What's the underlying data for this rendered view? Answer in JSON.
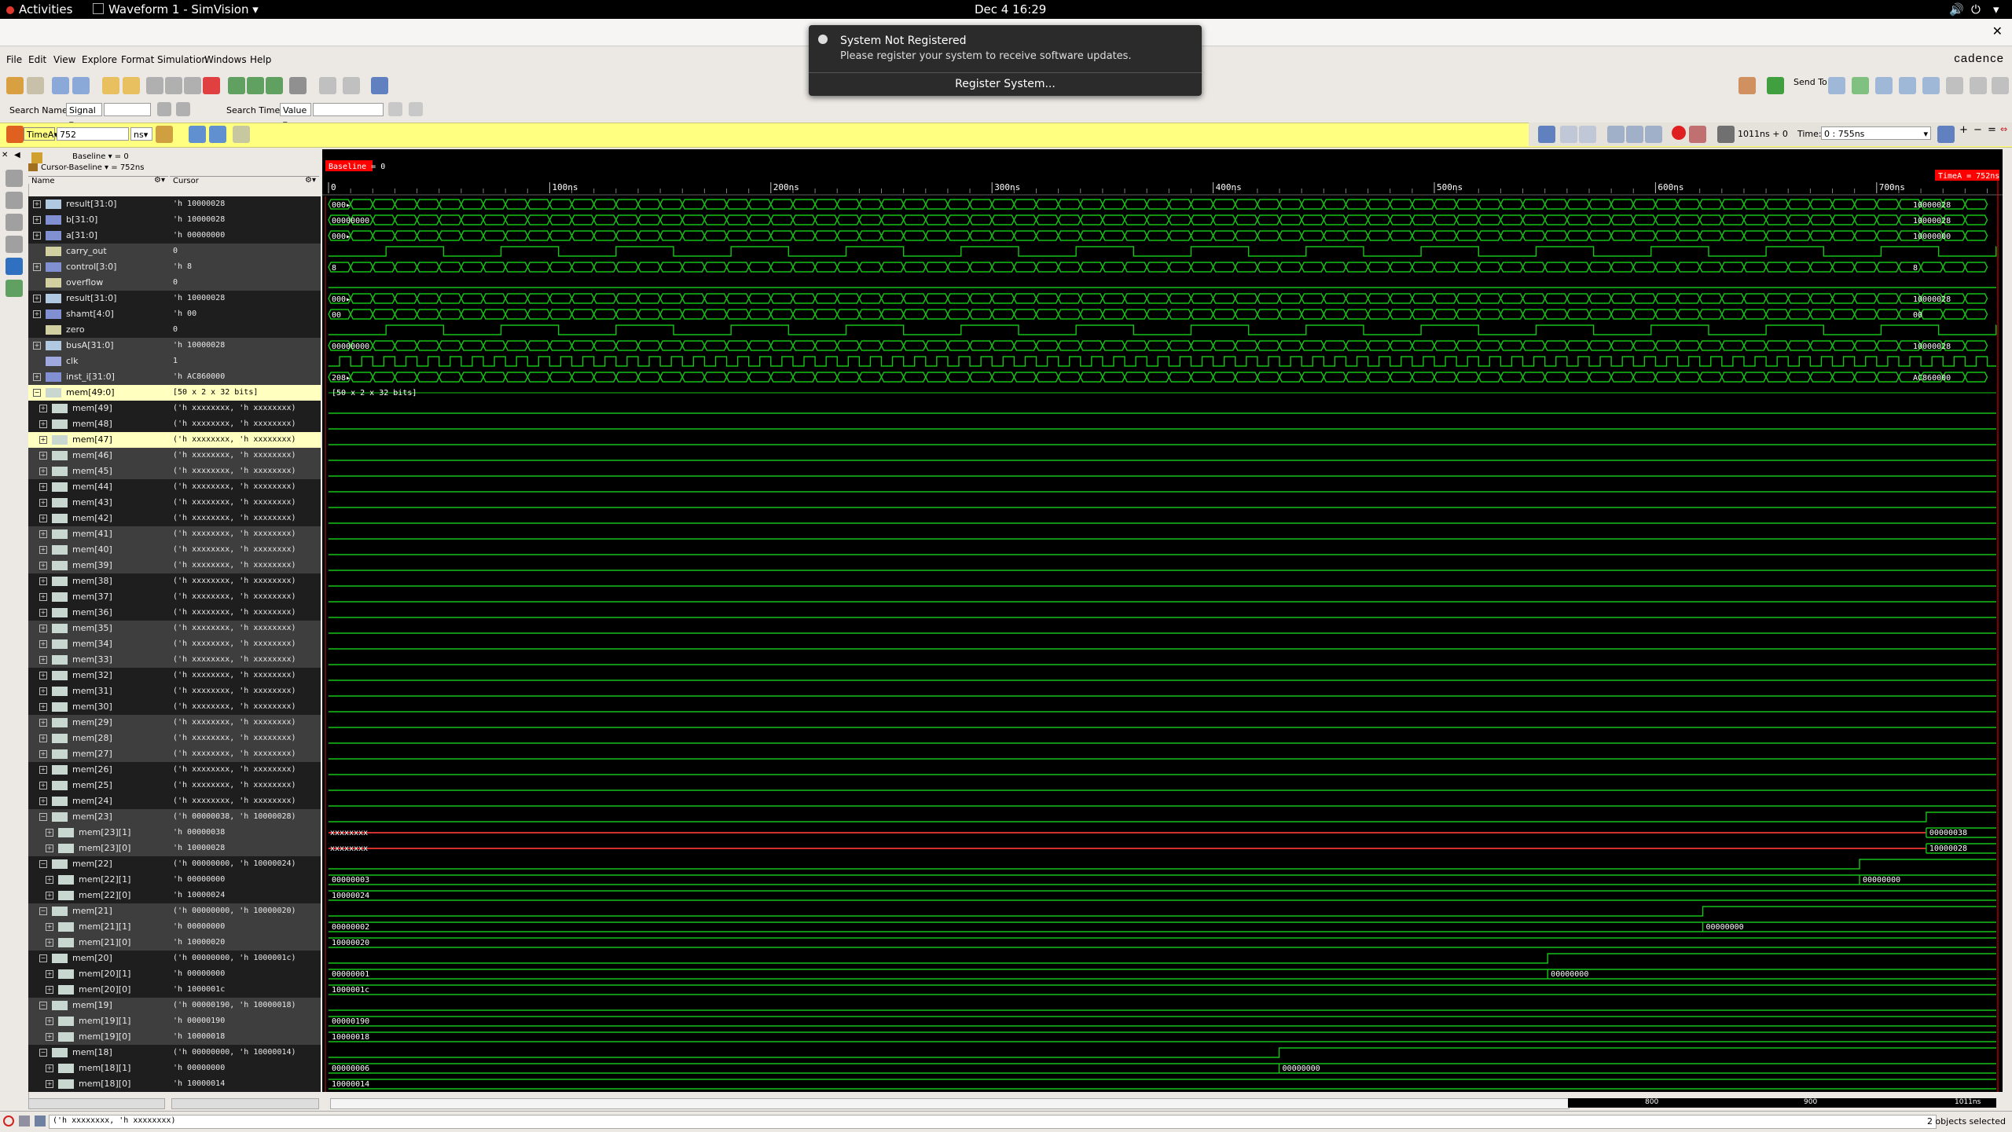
{
  "topbar": {
    "activities": "Activities",
    "app_title": "Waveform 1 - SimVision",
    "clock": "Dec 4  16:29"
  },
  "notification": {
    "title": "System Not Registered",
    "message": "Please register your system to receive software updates.",
    "action": "Register System..."
  },
  "menu": [
    "File",
    "Edit",
    "View",
    "Explore",
    "Format",
    "Simulation",
    "Windows",
    "Help"
  ],
  "brand": "cadence",
  "send_to_label": "Send To:",
  "search": {
    "names_label": "Search Names:",
    "names_type": "Signal",
    "times_label": "Search Times:",
    "times_type": "Value"
  },
  "cursor_bar": {
    "cursor_name": "TimeA",
    "time_value": "752",
    "unit": "ns",
    "time_label": "Time:",
    "time_range": "0 : 755ns",
    "cursor_info": "1011ns + 0"
  },
  "baseline": {
    "baseline": "Baseline ▾ = 0",
    "cursor_baseline": "Cursor-Baseline ▾ = 752ns",
    "marker": "Baseline = 0",
    "timeA_marker": "TimeA = 752ns"
  },
  "headers": {
    "name": "Name",
    "cursor": "Cursor"
  },
  "time_ticks": [
    "0",
    "100ns",
    "200ns",
    "300ns",
    "400ns",
    "500ns",
    "600ns",
    "700ns"
  ],
  "signals": [
    {
      "name": "result[31:0]",
      "value": "'h 10000028",
      "icon": "bus",
      "expand": "+",
      "bg": "dark"
    },
    {
      "name": "b[31:0]",
      "value": "'h 10000028",
      "icon": "bus-in",
      "expand": "+",
      "bg": "dark"
    },
    {
      "name": "a[31:0]",
      "value": "'h 00000000",
      "icon": "bus-in",
      "expand": "+",
      "bg": "dark"
    },
    {
      "name": "carry_out",
      "value": "0",
      "icon": "wire",
      "expand": "",
      "bg": "grey"
    },
    {
      "name": "control[3:0]",
      "value": "'h 8",
      "icon": "bus-in",
      "expand": "+",
      "bg": "grey"
    },
    {
      "name": "overflow",
      "value": "0",
      "icon": "wire",
      "expand": "",
      "bg": "grey"
    },
    {
      "name": "result[31:0]",
      "value": "'h 10000028",
      "icon": "bus",
      "expand": "+",
      "bg": "dark"
    },
    {
      "name": "shamt[4:0]",
      "value": "'h 00",
      "icon": "bus-in",
      "expand": "+",
      "bg": "dark"
    },
    {
      "name": "zero",
      "value": "0",
      "icon": "wire",
      "expand": "",
      "bg": "dark"
    },
    {
      "name": "busA[31:0]",
      "value": "'h 10000028",
      "icon": "bus",
      "expand": "+",
      "bg": "grey"
    },
    {
      "name": "clk",
      "value": "1",
      "icon": "wire-in",
      "expand": "",
      "bg": "grey"
    },
    {
      "name": "inst_i[31:0]",
      "value": "'h AC860000",
      "icon": "bus-in",
      "expand": "+",
      "bg": "grey"
    },
    {
      "name": "mem[49:0]",
      "value": "[50 x 2 x 32 bits]",
      "icon": "mem",
      "expand": "−",
      "bg": "yel"
    },
    {
      "name": "mem[49]",
      "value": "('h xxxxxxxx, 'h xxxxxxxx)",
      "icon": "mem",
      "expand": "+",
      "bg": "dark",
      "indent": 1
    },
    {
      "name": "mem[48]",
      "value": "('h xxxxxxxx, 'h xxxxxxxx)",
      "icon": "mem",
      "expand": "+",
      "bg": "dark",
      "indent": 1
    },
    {
      "name": "mem[47]",
      "value": "('h xxxxxxxx, 'h xxxxxxxx)",
      "icon": "mem",
      "expand": "+",
      "bg": "yel",
      "indent": 1
    },
    {
      "name": "mem[46]",
      "value": "('h xxxxxxxx, 'h xxxxxxxx)",
      "icon": "mem",
      "expand": "+",
      "bg": "grey",
      "indent": 1
    },
    {
      "name": "mem[45]",
      "value": "('h xxxxxxxx, 'h xxxxxxxx)",
      "icon": "mem",
      "expand": "+",
      "bg": "grey",
      "indent": 1
    },
    {
      "name": "mem[44]",
      "value": "('h xxxxxxxx, 'h xxxxxxxx)",
      "icon": "mem",
      "expand": "+",
      "bg": "dark",
      "indent": 1
    },
    {
      "name": "mem[43]",
      "value": "('h xxxxxxxx, 'h xxxxxxxx)",
      "icon": "mem",
      "expand": "+",
      "bg": "dark",
      "indent": 1
    },
    {
      "name": "mem[42]",
      "value": "('h xxxxxxxx, 'h xxxxxxxx)",
      "icon": "mem",
      "expand": "+",
      "bg": "dark",
      "indent": 1
    },
    {
      "name": "mem[41]",
      "value": "('h xxxxxxxx, 'h xxxxxxxx)",
      "icon": "mem",
      "expand": "+",
      "bg": "grey",
      "indent": 1
    },
    {
      "name": "mem[40]",
      "value": "('h xxxxxxxx, 'h xxxxxxxx)",
      "icon": "mem",
      "expand": "+",
      "bg": "grey",
      "indent": 1
    },
    {
      "name": "mem[39]",
      "value": "('h xxxxxxxx, 'h xxxxxxxx)",
      "icon": "mem",
      "expand": "+",
      "bg": "grey",
      "indent": 1
    },
    {
      "name": "mem[38]",
      "value": "('h xxxxxxxx, 'h xxxxxxxx)",
      "icon": "mem",
      "expand": "+",
      "bg": "dark",
      "indent": 1
    },
    {
      "name": "mem[37]",
      "value": "('h xxxxxxxx, 'h xxxxxxxx)",
      "icon": "mem",
      "expand": "+",
      "bg": "dark",
      "indent": 1
    },
    {
      "name": "mem[36]",
      "value": "('h xxxxxxxx, 'h xxxxxxxx)",
      "icon": "mem",
      "expand": "+",
      "bg": "dark",
      "indent": 1
    },
    {
      "name": "mem[35]",
      "value": "('h xxxxxxxx, 'h xxxxxxxx)",
      "icon": "mem",
      "expand": "+",
      "bg": "grey",
      "indent": 1
    },
    {
      "name": "mem[34]",
      "value": "('h xxxxxxxx, 'h xxxxxxxx)",
      "icon": "mem",
      "expand": "+",
      "bg": "grey",
      "indent": 1
    },
    {
      "name": "mem[33]",
      "value": "('h xxxxxxxx, 'h xxxxxxxx)",
      "icon": "mem",
      "expand": "+",
      "bg": "grey",
      "indent": 1
    },
    {
      "name": "mem[32]",
      "value": "('h xxxxxxxx, 'h xxxxxxxx)",
      "icon": "mem",
      "expand": "+",
      "bg": "dark",
      "indent": 1
    },
    {
      "name": "mem[31]",
      "value": "('h xxxxxxxx, 'h xxxxxxxx)",
      "icon": "mem",
      "expand": "+",
      "bg": "dark",
      "indent": 1
    },
    {
      "name": "mem[30]",
      "value": "('h xxxxxxxx, 'h xxxxxxxx)",
      "icon": "mem",
      "expand": "+",
      "bg": "dark",
      "indent": 1
    },
    {
      "name": "mem[29]",
      "value": "('h xxxxxxxx, 'h xxxxxxxx)",
      "icon": "mem",
      "expand": "+",
      "bg": "grey",
      "indent": 1
    },
    {
      "name": "mem[28]",
      "value": "('h xxxxxxxx, 'h xxxxxxxx)",
      "icon": "mem",
      "expand": "+",
      "bg": "grey",
      "indent": 1
    },
    {
      "name": "mem[27]",
      "value": "('h xxxxxxxx, 'h xxxxxxxx)",
      "icon": "mem",
      "expand": "+",
      "bg": "grey",
      "indent": 1
    },
    {
      "name": "mem[26]",
      "value": "('h xxxxxxxx, 'h xxxxxxxx)",
      "icon": "mem",
      "expand": "+",
      "bg": "dark",
      "indent": 1
    },
    {
      "name": "mem[25]",
      "value": "('h xxxxxxxx, 'h xxxxxxxx)",
      "icon": "mem",
      "expand": "+",
      "bg": "dark",
      "indent": 1
    },
    {
      "name": "mem[24]",
      "value": "('h xxxxxxxx, 'h xxxxxxxx)",
      "icon": "mem",
      "expand": "+",
      "bg": "dark",
      "indent": 1
    },
    {
      "name": "mem[23]",
      "value": "('h 00000038, 'h 10000028)",
      "icon": "mem",
      "expand": "−",
      "bg": "grey",
      "indent": 1
    },
    {
      "name": "mem[23][1]",
      "value": "'h 00000038",
      "icon": "mem",
      "expand": "+",
      "bg": "grey",
      "indent": 2
    },
    {
      "name": "mem[23][0]",
      "value": "'h 10000028",
      "icon": "mem",
      "expand": "+",
      "bg": "grey",
      "indent": 2
    },
    {
      "name": "mem[22]",
      "value": "('h 00000000, 'h 10000024)",
      "icon": "mem",
      "expand": "−",
      "bg": "dark",
      "indent": 1
    },
    {
      "name": "mem[22][1]",
      "value": "'h 00000000",
      "icon": "mem",
      "expand": "+",
      "bg": "dark",
      "indent": 2
    },
    {
      "name": "mem[22][0]",
      "value": "'h 10000024",
      "icon": "mem",
      "expand": "+",
      "bg": "dark",
      "indent": 2
    },
    {
      "name": "mem[21]",
      "value": "('h 00000000, 'h 10000020)",
      "icon": "mem",
      "expand": "−",
      "bg": "grey",
      "indent": 1
    },
    {
      "name": "mem[21][1]",
      "value": "'h 00000000",
      "icon": "mem",
      "expand": "+",
      "bg": "grey",
      "indent": 2
    },
    {
      "name": "mem[21][0]",
      "value": "'h 10000020",
      "icon": "mem",
      "expand": "+",
      "bg": "grey",
      "indent": 2
    },
    {
      "name": "mem[20]",
      "value": "('h 00000000, 'h 1000001c)",
      "icon": "mem",
      "expand": "−",
      "bg": "dark",
      "indent": 1
    },
    {
      "name": "mem[20][1]",
      "value": "'h 00000000",
      "icon": "mem",
      "expand": "+",
      "bg": "dark",
      "indent": 2
    },
    {
      "name": "mem[20][0]",
      "value": "'h 1000001c",
      "icon": "mem",
      "expand": "+",
      "bg": "dark",
      "indent": 2
    },
    {
      "name": "mem[19]",
      "value": "('h 00000190, 'h 10000018)",
      "icon": "mem",
      "expand": "−",
      "bg": "grey",
      "indent": 1
    },
    {
      "name": "mem[19][1]",
      "value": "'h 00000190",
      "icon": "mem",
      "expand": "+",
      "bg": "grey",
      "indent": 2
    },
    {
      "name": "mem[19][0]",
      "value": "'h 10000018",
      "icon": "mem",
      "expand": "+",
      "bg": "grey",
      "indent": 2
    },
    {
      "name": "mem[18]",
      "value": "('h 00000000, 'h 10000014)",
      "icon": "mem",
      "expand": "−",
      "bg": "dark",
      "indent": 1
    },
    {
      "name": "mem[18][1]",
      "value": "'h 00000000",
      "icon": "mem",
      "expand": "+",
      "bg": "dark",
      "indent": 2
    },
    {
      "name": "mem[18][0]",
      "value": "'h 10000014",
      "icon": "mem",
      "expand": "+",
      "bg": "dark",
      "indent": 2
    }
  ],
  "waves": [
    {
      "type": "bus",
      "start": "000▸",
      "end": "10000028"
    },
    {
      "type": "bus",
      "start": "00000000",
      "end": "10000028"
    },
    {
      "type": "bus",
      "start": "000▸",
      "end": "10000000"
    },
    {
      "type": "bit"
    },
    {
      "type": "bus",
      "start": "8",
      "end": "8"
    },
    {
      "type": "flat"
    },
    {
      "type": "bus",
      "start": "000▸",
      "end": "10000028"
    },
    {
      "type": "bus",
      "start": "00",
      "end": "00"
    },
    {
      "type": "bit"
    },
    {
      "type": "bus",
      "start": "00000000",
      "end": "10000028"
    },
    {
      "type": "clk"
    },
    {
      "type": "bus",
      "start": "208▸",
      "end": "AC860000"
    },
    {
      "type": "label",
      "start": "[50 x 2 x 32 bits]"
    },
    {
      "type": "flat"
    },
    {
      "type": "flat"
    },
    {
      "type": "flat"
    },
    {
      "type": "flat"
    },
    {
      "type": "flat"
    },
    {
      "type": "flat"
    },
    {
      "type": "flat"
    },
    {
      "type": "flat"
    },
    {
      "type": "flat"
    },
    {
      "type": "flat"
    },
    {
      "type": "flat"
    },
    {
      "type": "flat"
    },
    {
      "type": "flat"
    },
    {
      "type": "flat"
    },
    {
      "type": "flat"
    },
    {
      "type": "flat"
    },
    {
      "type": "flat"
    },
    {
      "type": "flat"
    },
    {
      "type": "flat"
    },
    {
      "type": "flat"
    },
    {
      "type": "flat"
    },
    {
      "type": "flat"
    },
    {
      "type": "flat"
    },
    {
      "type": "flat"
    },
    {
      "type": "flat"
    },
    {
      "type": "flat"
    },
    {
      "type": "change",
      "t": 0.958
    },
    {
      "type": "xval",
      "start": "xxxxxxxx",
      "end": "00000038",
      "t": 0.958
    },
    {
      "type": "xval",
      "start": "xxxxxxxx",
      "end": "10000028",
      "t": 0.958
    },
    {
      "type": "change",
      "t": 0.918
    },
    {
      "type": "val",
      "start": "00000003",
      "end": "00000000",
      "t": 0.918
    },
    {
      "type": "val",
      "start": "10000024"
    },
    {
      "type": "change",
      "t": 0.824
    },
    {
      "type": "val",
      "start": "00000002",
      "end": "00000000",
      "t": 0.824
    },
    {
      "type": "val",
      "start": "10000020"
    },
    {
      "type": "change",
      "t": 0.731
    },
    {
      "type": "val",
      "start": "00000001",
      "end": "00000000",
      "t": 0.731
    },
    {
      "type": "val",
      "start": "1000001c"
    },
    {
      "type": "flat"
    },
    {
      "type": "val",
      "start": "00000190"
    },
    {
      "type": "val",
      "start": "10000018"
    },
    {
      "type": "change",
      "t": 0.57
    },
    {
      "type": "val",
      "start": "00000006",
      "end": "00000000",
      "t": 0.57
    },
    {
      "type": "val",
      "start": "10000014"
    }
  ],
  "scroll_ticks": [
    "800",
    "900",
    "1011ns"
  ],
  "status": {
    "selected_value": "('h xxxxxxxx, 'h xxxxxxxx)",
    "objects_selected": "2 objects selected"
  },
  "colors": {
    "wave": "#16c316",
    "x_state": "#d03030",
    "marker": "#ff0000",
    "highlight": "#ffff80",
    "background": "#000000"
  }
}
